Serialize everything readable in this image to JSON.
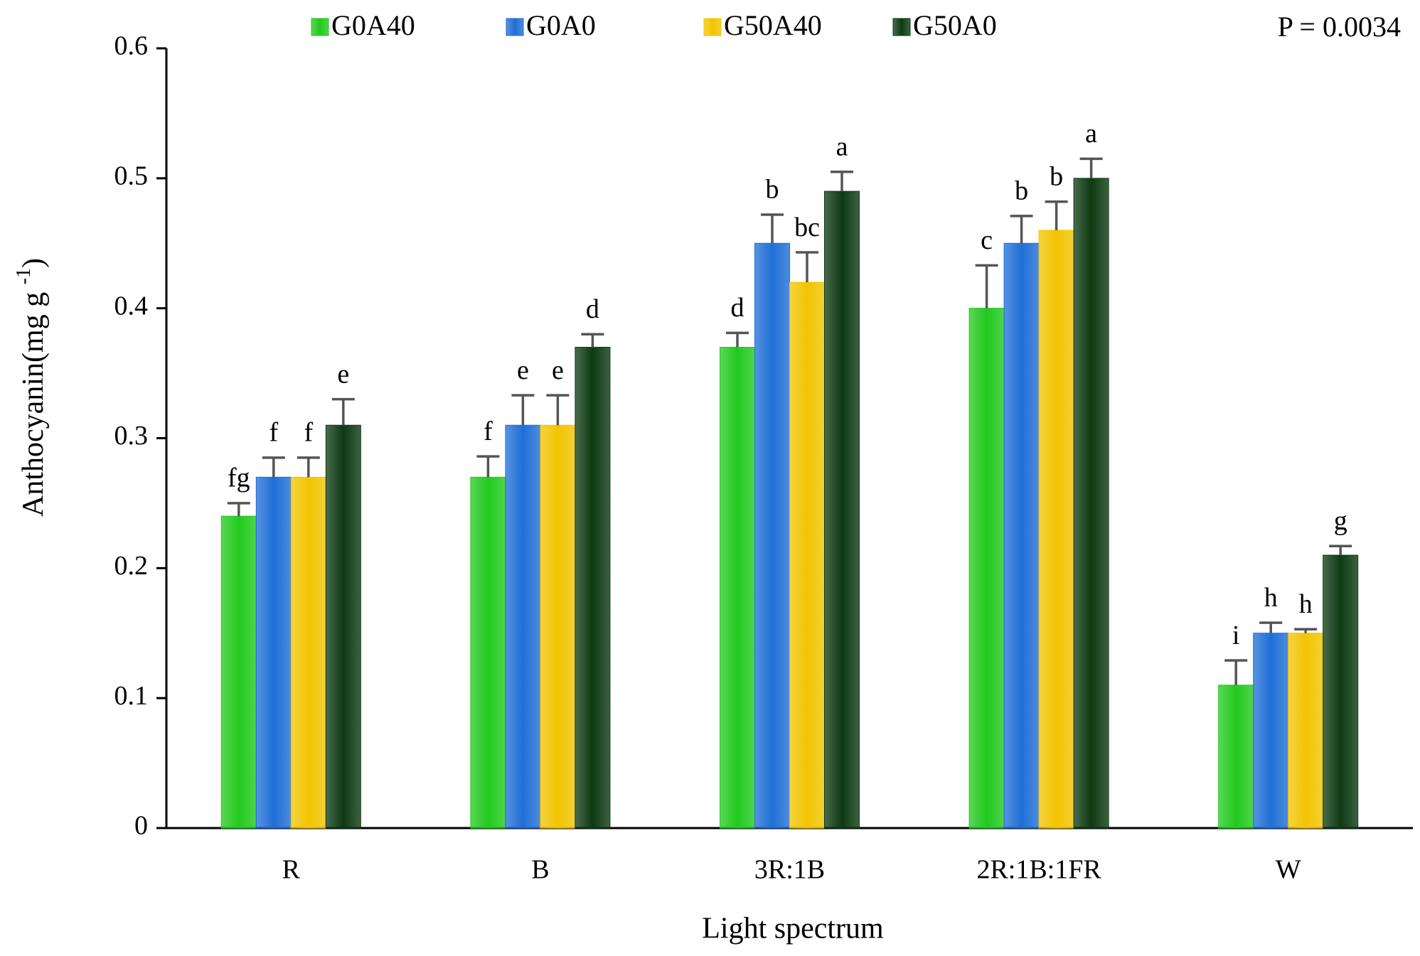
{
  "chart_data": {
    "type": "bar",
    "x_label": "Light spectrum",
    "y_label": [
      "Anthocyanin(mg g ",
      "-1",
      ")"
    ],
    "annotation": "P = 0.0034",
    "categories": [
      "R",
      "B",
      "3R:1B",
      "2R:1B:1FR",
      "W"
    ],
    "series": [
      {
        "name": "G0A40",
        "color": "#22c91e",
        "values": [
          0.24,
          0.27,
          0.37,
          0.4,
          0.11
        ],
        "errors": [
          0.01,
          0.016,
          0.011,
          0.033,
          0.019
        ],
        "letters": [
          "fg",
          "f",
          "d",
          "c",
          "i"
        ]
      },
      {
        "name": "G0A0",
        "color": "#1f6fd6",
        "values": [
          0.27,
          0.31,
          0.45,
          0.45,
          0.15
        ],
        "errors": [
          0.015,
          0.023,
          0.022,
          0.021,
          0.008
        ],
        "letters": [
          "f",
          "e",
          "b",
          "b",
          "h"
        ]
      },
      {
        "name": "G50A40",
        "color": "#f2c400",
        "values": [
          0.27,
          0.31,
          0.42,
          0.46,
          0.15
        ],
        "errors": [
          0.015,
          0.023,
          0.023,
          0.022,
          0.003
        ],
        "letters": [
          "f",
          "e",
          "bc",
          "b",
          "h"
        ]
      },
      {
        "name": "G50A0",
        "color": "#0d3a12",
        "values": [
          0.31,
          0.37,
          0.49,
          0.5,
          0.21
        ],
        "errors": [
          0.02,
          0.01,
          0.015,
          0.015,
          0.007
        ],
        "letters": [
          "e",
          "d",
          "a",
          "a",
          "g"
        ]
      }
    ],
    "ylim": [
      0,
      0.6
    ],
    "yticks": [
      0,
      0.1,
      0.2,
      0.3,
      0.4,
      0.5,
      0.6
    ],
    "legend": "top"
  }
}
